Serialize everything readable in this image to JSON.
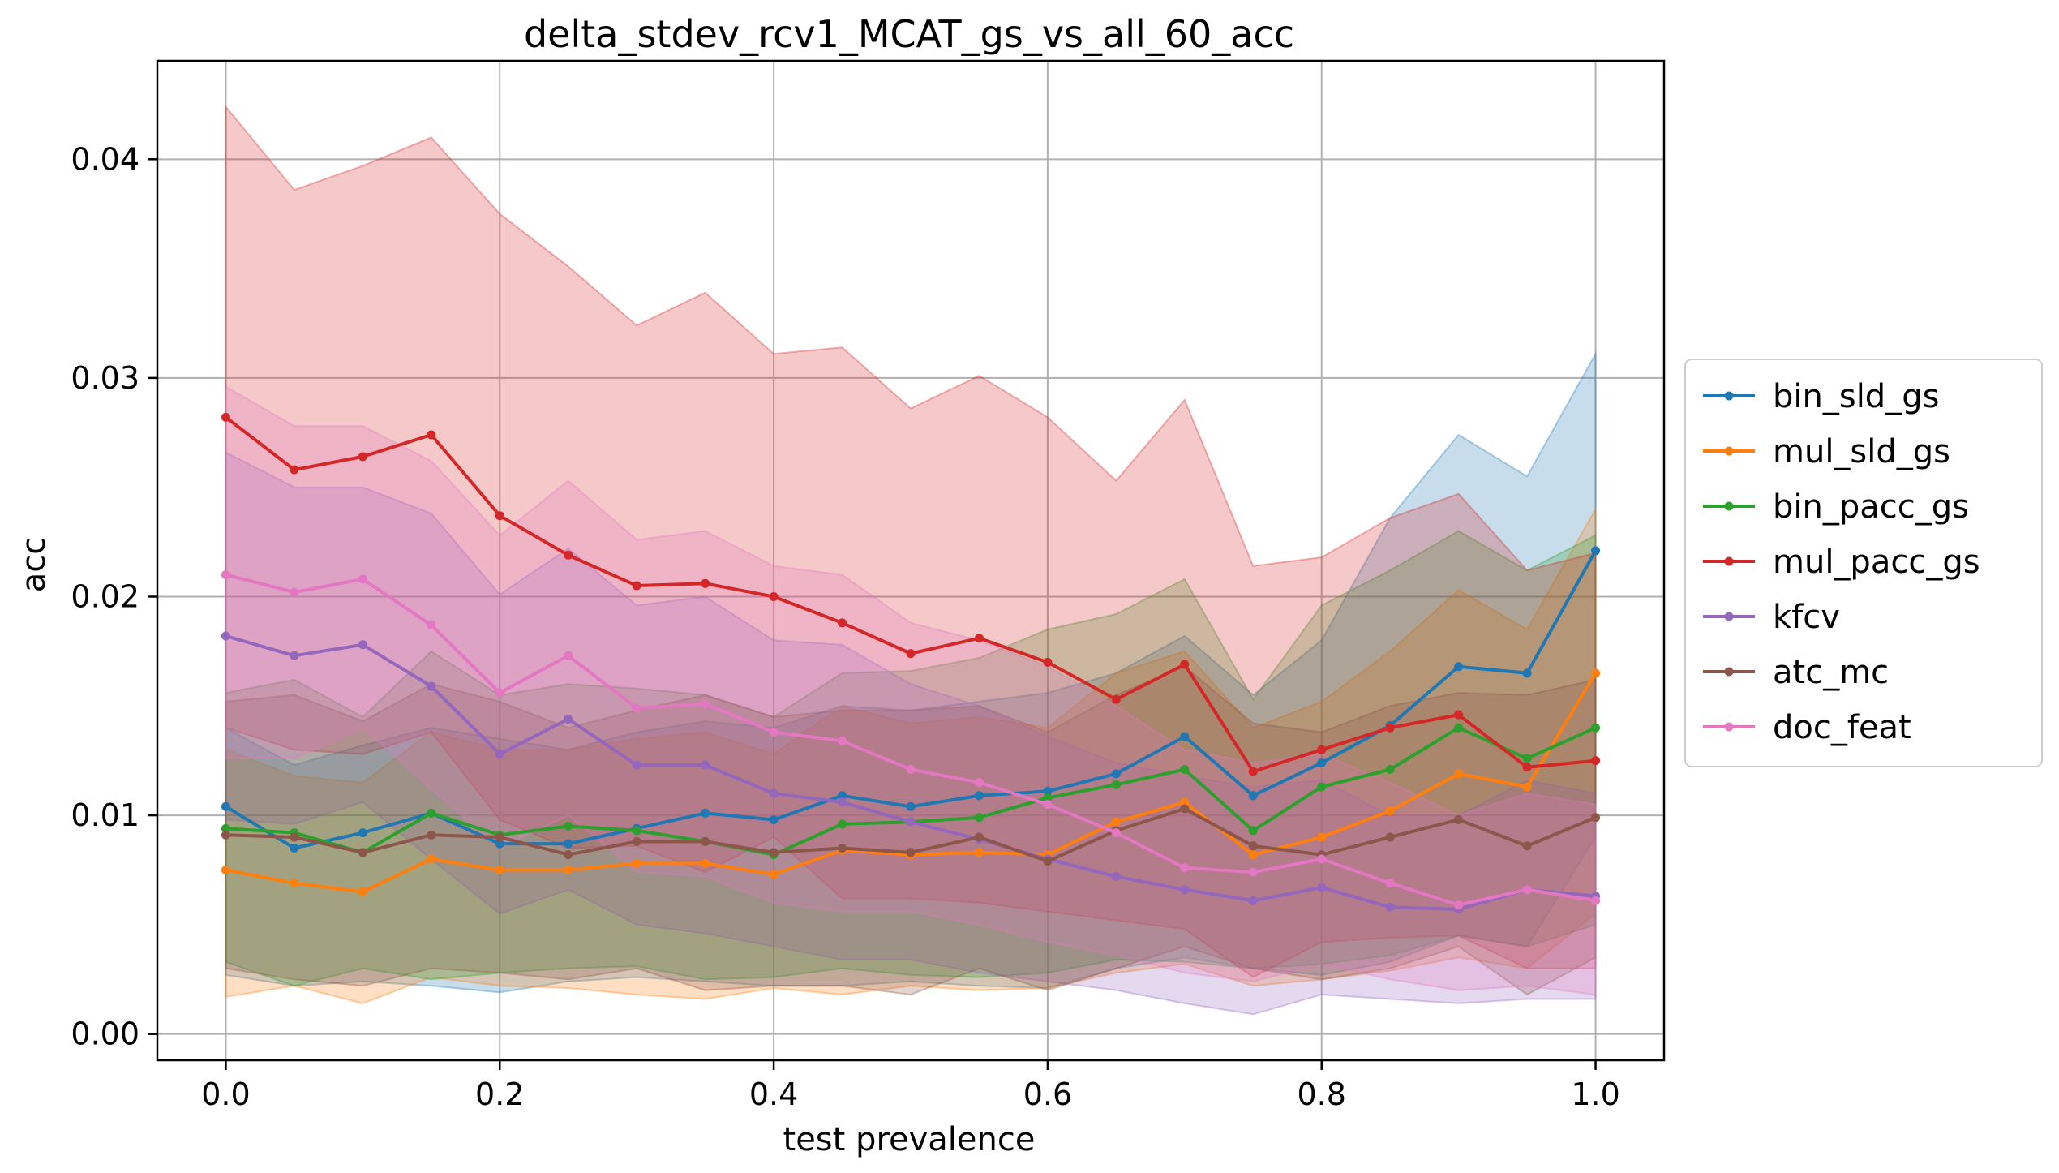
{
  "chart_data": {
    "type": "line",
    "title": "delta_stdev_rcv1_MCAT_gs_vs_all_60_acc",
    "xlabel": "test prevalence",
    "ylabel": "acc",
    "xlim": [
      -0.05,
      1.05
    ],
    "ylim": [
      -0.0012,
      0.0445
    ],
    "xticks": [
      0.0,
      0.2,
      0.4,
      0.6,
      0.8,
      1.0
    ],
    "xtick_labels": [
      "0.0",
      "0.2",
      "0.4",
      "0.6",
      "0.8",
      "1.0"
    ],
    "yticks": [
      0.0,
      0.01,
      0.02,
      0.03,
      0.04
    ],
    "ytick_labels": [
      "0.00",
      "0.01",
      "0.02",
      "0.03",
      "0.04"
    ],
    "grid": true,
    "legend_position": "right",
    "x": [
      0.0,
      0.05,
      0.1,
      0.15,
      0.2,
      0.25,
      0.3,
      0.35,
      0.4,
      0.45,
      0.5,
      0.55,
      0.6,
      0.65,
      0.7,
      0.75,
      0.8,
      0.85,
      0.9,
      0.95,
      1.0
    ],
    "series": [
      {
        "name": "bin_sld_gs",
        "color": "#1f77b4",
        "values": [
          0.0104,
          0.0085,
          0.0092,
          0.0101,
          0.0087,
          0.0087,
          0.0094,
          0.0101,
          0.0098,
          0.0109,
          0.0104,
          0.0109,
          0.0111,
          0.0119,
          0.0136,
          0.0109,
          0.0124,
          0.0141,
          0.0168,
          0.0165,
          0.0221
        ],
        "lower": [
          0.0027,
          0.0022,
          0.0024,
          0.0022,
          0.0019,
          0.0024,
          0.0026,
          0.0024,
          0.0022,
          0.0022,
          0.0024,
          0.0022,
          0.0021,
          0.003,
          0.0035,
          0.003,
          0.0027,
          0.0033,
          0.0045,
          0.004,
          0.009
        ],
        "upper": [
          0.014,
          0.0123,
          0.0132,
          0.014,
          0.0135,
          0.013,
          0.0138,
          0.0143,
          0.014,
          0.015,
          0.0148,
          0.0152,
          0.0156,
          0.0165,
          0.0182,
          0.0155,
          0.018,
          0.0236,
          0.0274,
          0.0255,
          0.0311
        ]
      },
      {
        "name": "mul_sld_gs",
        "color": "#ff7f0e",
        "values": [
          0.0075,
          0.0069,
          0.0065,
          0.008,
          0.0075,
          0.0075,
          0.0078,
          0.0078,
          0.0073,
          0.0084,
          0.0082,
          0.0083,
          0.0082,
          0.0097,
          0.0106,
          0.0082,
          0.009,
          0.0102,
          0.0119,
          0.0113,
          0.0165
        ],
        "lower": [
          0.0017,
          0.0022,
          0.0014,
          0.0026,
          0.0022,
          0.0021,
          0.0018,
          0.0016,
          0.0021,
          0.0018,
          0.0022,
          0.002,
          0.0021,
          0.0028,
          0.0032,
          0.0022,
          0.0025,
          0.0029,
          0.0035,
          0.003,
          0.0055
        ],
        "upper": [
          0.013,
          0.0118,
          0.0115,
          0.0138,
          0.013,
          0.013,
          0.0135,
          0.0138,
          0.0128,
          0.015,
          0.0142,
          0.0145,
          0.014,
          0.0165,
          0.0175,
          0.014,
          0.0152,
          0.0175,
          0.0203,
          0.0185,
          0.024
        ]
      },
      {
        "name": "bin_pacc_gs",
        "color": "#2ca02c",
        "values": [
          0.0094,
          0.0092,
          0.0083,
          0.0101,
          0.0091,
          0.0095,
          0.0093,
          0.0088,
          0.0082,
          0.0096,
          0.0097,
          0.0099,
          0.0108,
          0.0114,
          0.0121,
          0.0093,
          0.0113,
          0.0121,
          0.014,
          0.0126,
          0.014
        ],
        "lower": [
          0.0033,
          0.0022,
          0.003,
          0.0025,
          0.0028,
          0.003,
          0.0031,
          0.0025,
          0.0026,
          0.003,
          0.0027,
          0.0026,
          0.0028,
          0.0034,
          0.0033,
          0.003,
          0.0032,
          0.0036,
          0.0045,
          0.004,
          0.005
        ],
        "upper": [
          0.0156,
          0.0162,
          0.0145,
          0.0175,
          0.0155,
          0.016,
          0.0158,
          0.0155,
          0.0145,
          0.0165,
          0.0166,
          0.0172,
          0.0185,
          0.0192,
          0.0208,
          0.0153,
          0.0196,
          0.0212,
          0.023,
          0.0212,
          0.0228
        ]
      },
      {
        "name": "mul_pacc_gs",
        "color": "#d62728",
        "values": [
          0.0282,
          0.0258,
          0.0264,
          0.0274,
          0.0237,
          0.0219,
          0.0205,
          0.0206,
          0.02,
          0.0188,
          0.0174,
          0.0181,
          0.017,
          0.0153,
          0.0169,
          0.012,
          0.013,
          0.014,
          0.0146,
          0.0122,
          0.0125
        ],
        "lower": [
          0.014,
          0.013,
          0.0128,
          0.0138,
          0.0098,
          0.0085,
          0.0086,
          0.0074,
          0.009,
          0.0062,
          0.0062,
          0.006,
          0.0056,
          0.0052,
          0.0048,
          0.0026,
          0.0042,
          0.0044,
          0.0045,
          0.003,
          0.003
        ],
        "upper": [
          0.0424,
          0.0386,
          0.0397,
          0.041,
          0.0375,
          0.0351,
          0.0324,
          0.0339,
          0.0311,
          0.0314,
          0.0286,
          0.0301,
          0.0282,
          0.0253,
          0.029,
          0.0214,
          0.0218,
          0.0236,
          0.0247,
          0.0212,
          0.022
        ]
      },
      {
        "name": "kfcv",
        "color": "#9467bd",
        "values": [
          0.0182,
          0.0173,
          0.0178,
          0.0159,
          0.0128,
          0.0144,
          0.0123,
          0.0123,
          0.011,
          0.0106,
          0.0097,
          0.0089,
          0.008,
          0.0072,
          0.0066,
          0.0061,
          0.0067,
          0.0058,
          0.0057,
          0.0066,
          0.0063
        ],
        "lower": [
          0.0098,
          0.0096,
          0.0106,
          0.008,
          0.0055,
          0.0066,
          0.005,
          0.0046,
          0.004,
          0.0034,
          0.0034,
          0.0028,
          0.0024,
          0.002,
          0.0014,
          0.0009,
          0.0018,
          0.0016,
          0.0014,
          0.0016,
          0.0016
        ],
        "upper": [
          0.0266,
          0.025,
          0.025,
          0.0238,
          0.0201,
          0.0222,
          0.0196,
          0.02,
          0.018,
          0.0178,
          0.016,
          0.015,
          0.0136,
          0.0124,
          0.0118,
          0.0113,
          0.0116,
          0.01,
          0.01,
          0.0116,
          0.011
        ]
      },
      {
        "name": "atc_mc",
        "color": "#8c564b",
        "values": [
          0.0091,
          0.009,
          0.0083,
          0.0091,
          0.009,
          0.0082,
          0.0088,
          0.0088,
          0.0083,
          0.0085,
          0.0083,
          0.009,
          0.0079,
          0.0093,
          0.0103,
          0.0086,
          0.0082,
          0.009,
          0.0098,
          0.0086,
          0.0099
        ],
        "lower": [
          0.003,
          0.0025,
          0.0022,
          0.003,
          0.0028,
          0.0025,
          0.003,
          0.002,
          0.0022,
          0.0022,
          0.0018,
          0.003,
          0.002,
          0.003,
          0.004,
          0.003,
          0.0025,
          0.003,
          0.004,
          0.0018,
          0.0035
        ],
        "upper": [
          0.0152,
          0.0155,
          0.0143,
          0.016,
          0.0152,
          0.014,
          0.0148,
          0.0155,
          0.0145,
          0.0148,
          0.0148,
          0.015,
          0.0138,
          0.0155,
          0.0168,
          0.0142,
          0.0138,
          0.015,
          0.0156,
          0.0155,
          0.0162
        ]
      },
      {
        "name": "doc_feat",
        "color": "#e377c2",
        "values": [
          0.021,
          0.0202,
          0.0208,
          0.0187,
          0.0156,
          0.0173,
          0.0149,
          0.0151,
          0.0138,
          0.0134,
          0.0121,
          0.0115,
          0.0105,
          0.0092,
          0.0076,
          0.0074,
          0.008,
          0.0069,
          0.0059,
          0.0066,
          0.0061
        ],
        "lower": [
          0.0126,
          0.0126,
          0.014,
          0.0112,
          0.0085,
          0.01,
          0.0074,
          0.0072,
          0.006,
          0.0056,
          0.0056,
          0.005,
          0.0042,
          0.0036,
          0.0028,
          0.0024,
          0.0032,
          0.0025,
          0.002,
          0.0022,
          0.0018
        ],
        "upper": [
          0.0296,
          0.0278,
          0.0278,
          0.0262,
          0.0228,
          0.0253,
          0.0226,
          0.023,
          0.0214,
          0.021,
          0.0188,
          0.018,
          0.0168,
          0.015,
          0.013,
          0.0124,
          0.0128,
          0.0115,
          0.01,
          0.011,
          0.0105
        ]
      }
    ]
  }
}
